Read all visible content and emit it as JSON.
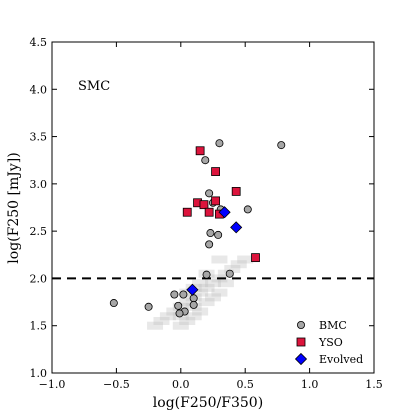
{
  "chart_data": {
    "type": "scatter",
    "inset_label": "SMC",
    "xlabel": "log(F250/F350)",
    "ylabel": "log(F250 [mJy])",
    "xlim": [
      -1.0,
      1.5
    ],
    "ylim": [
      1.0,
      4.5
    ],
    "xticks": [
      "−1.0",
      "−0.5",
      "0.0",
      "0.5",
      "1.0",
      "1.5"
    ],
    "yticks": [
      "1.0",
      "1.5",
      "2.0",
      "2.5",
      "3.0",
      "3.5",
      "4.0",
      "4.5"
    ],
    "xtick_values": [
      -1.0,
      -0.5,
      0.0,
      0.5,
      1.0,
      1.5
    ],
    "ytick_values": [
      1.0,
      1.5,
      2.0,
      2.5,
      3.0,
      3.5,
      4.0,
      4.5
    ],
    "threshold_line_y": 2.0,
    "legend_position": "bottom-right",
    "background_density": {
      "color": "#bdbdbd",
      "description_points": [
        [
          0.0,
          1.7
        ],
        [
          0.05,
          1.75
        ],
        [
          0.1,
          1.8
        ],
        [
          0.15,
          1.85
        ],
        [
          0.2,
          1.9
        ],
        [
          0.1,
          1.7
        ],
        [
          0.0,
          1.6
        ],
        [
          -0.05,
          1.65
        ],
        [
          0.2,
          1.75
        ],
        [
          0.25,
          1.95
        ],
        [
          0.3,
          2.0
        ],
        [
          0.15,
          1.65
        ],
        [
          0.05,
          1.55
        ],
        [
          -0.1,
          1.6
        ],
        [
          0.3,
          1.85
        ],
        [
          0.35,
          2.05
        ],
        [
          0.4,
          2.1
        ],
        [
          0.2,
          2.05
        ],
        [
          0.1,
          1.9
        ],
        [
          -0.15,
          1.55
        ],
        [
          0.25,
          1.8
        ],
        [
          0.45,
          2.15
        ],
        [
          0.0,
          1.5
        ],
        [
          0.1,
          1.6
        ],
        [
          0.35,
          1.95
        ],
        [
          0.3,
          2.2
        ],
        [
          0.05,
          1.85
        ],
        [
          0.15,
          1.95
        ],
        [
          -0.2,
          1.5
        ],
        [
          0.5,
          2.2
        ]
      ]
    },
    "series": [
      {
        "name": "BMC",
        "marker": "circle",
        "color": "#a6a6a6",
        "points": [
          [
            0.3,
            3.43
          ],
          [
            0.78,
            3.41
          ],
          [
            0.19,
            3.25
          ],
          [
            0.22,
            2.9
          ],
          [
            0.25,
            2.8
          ],
          [
            0.31,
            2.73
          ],
          [
            0.52,
            2.73
          ],
          [
            0.23,
            2.48
          ],
          [
            0.29,
            2.46
          ],
          [
            0.22,
            2.36
          ],
          [
            0.2,
            2.04
          ],
          [
            0.38,
            2.05
          ],
          [
            -0.05,
            1.83
          ],
          [
            0.02,
            1.83
          ],
          [
            0.1,
            1.79
          ],
          [
            -0.52,
            1.74
          ],
          [
            -0.25,
            1.7
          ],
          [
            -0.02,
            1.71
          ],
          [
            0.1,
            1.72
          ],
          [
            0.03,
            1.65
          ],
          [
            -0.01,
            1.63
          ]
        ]
      },
      {
        "name": "YSO",
        "marker": "square",
        "color": "#dc143c",
        "points": [
          [
            0.15,
            3.35
          ],
          [
            0.27,
            3.13
          ],
          [
            0.13,
            2.8
          ],
          [
            0.18,
            2.78
          ],
          [
            0.27,
            2.82
          ],
          [
            0.43,
            2.92
          ],
          [
            0.05,
            2.7
          ],
          [
            0.22,
            2.7
          ],
          [
            0.3,
            2.68
          ],
          [
            0.58,
            2.22
          ]
        ]
      },
      {
        "name": "Evolved",
        "marker": "diamond",
        "color": "#0000ff",
        "points": [
          [
            0.34,
            2.7
          ],
          [
            0.43,
            2.54
          ],
          [
            0.09,
            1.88
          ]
        ]
      }
    ]
  }
}
